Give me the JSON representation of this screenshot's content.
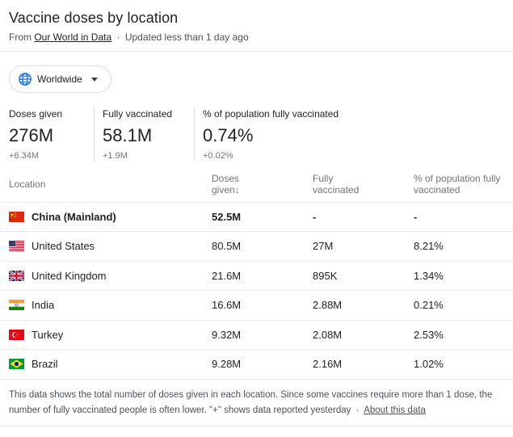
{
  "header": {
    "title": "Vaccine doses by location",
    "source_prefix": "From",
    "source_link": "Our World in Data",
    "separator": "·",
    "updated": "Updated less than 1 day ago"
  },
  "location_selector": {
    "label": "Worldwide",
    "icon": "globe-icon"
  },
  "stats": [
    {
      "label": "Doses given",
      "value": "276M",
      "delta": "+6.34M"
    },
    {
      "label": "Fully vaccinated",
      "value": "58.1M",
      "delta": "+1.9M"
    },
    {
      "label": "% of population fully vaccinated",
      "value": "0.74%",
      "delta": "+0.02%"
    }
  ],
  "table": {
    "columns": {
      "location": "Location",
      "doses_line1": "Doses",
      "doses_line2": "given",
      "sort_arrow": "↓",
      "fully_line1": "Fully",
      "fully_line2": "vaccinated",
      "pct_line1": "% of population fully",
      "pct_line2": "vaccinated"
    },
    "rows": [
      {
        "flag": "china-flag-icon",
        "name": "China (Mainland)",
        "doses": "52.5M",
        "fully": "-",
        "pct": "-"
      },
      {
        "flag": "usa-flag-icon",
        "name": "United States",
        "doses": "80.5M",
        "fully": "27M",
        "pct": "8.21%"
      },
      {
        "flag": "uk-flag-icon",
        "name": "United Kingdom",
        "doses": "21.6M",
        "fully": "895K",
        "pct": "1.34%"
      },
      {
        "flag": "india-flag-icon",
        "name": "India",
        "doses": "16.6M",
        "fully": "2.88M",
        "pct": "0.21%"
      },
      {
        "flag": "turkey-flag-icon",
        "name": "Turkey",
        "doses": "9.32M",
        "fully": "2.08M",
        "pct": "2.53%"
      },
      {
        "flag": "brazil-flag-icon",
        "name": "Brazil",
        "doses": "9.28M",
        "fully": "2.16M",
        "pct": "1.02%"
      }
    ]
  },
  "footer": {
    "note": "This data shows the total number of doses given in each location. Since some vaccines require more than 1 dose, the number of fully vaccinated people is often lower. \"+\" shows data reported yesterday",
    "separator": "·",
    "about_link": "About this data"
  },
  "colors": {
    "accent_blue": "#1a73e8",
    "text_primary": "#202124",
    "text_secondary": "#70757a",
    "divider": "#ebebeb"
  }
}
